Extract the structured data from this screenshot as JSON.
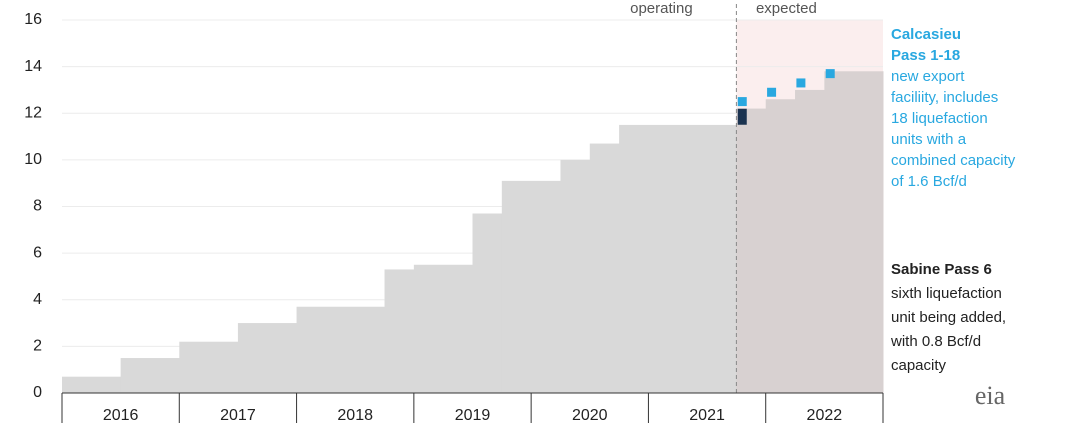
{
  "chart_data": {
    "type": "step-area",
    "ylim": [
      0,
      16
    ],
    "yticks": [
      0,
      2,
      4,
      6,
      8,
      10,
      12,
      14,
      16
    ],
    "grid": true,
    "xlim": [
      2016,
      2023
    ],
    "categories": [
      "2016",
      "2017",
      "2018",
      "2019",
      "2020",
      "2021",
      "2022"
    ],
    "steps": {
      "color": "#d9d9d9",
      "x": [
        2016,
        2016.5,
        2017,
        2017.5,
        2018,
        2018.75,
        2019,
        2019.5,
        2019.75,
        2020.25,
        2020.5,
        2020.75,
        2021.75,
        2022,
        2022.25,
        2022.5
      ],
      "values": [
        0.7,
        1.5,
        2.2,
        3.0,
        3.7,
        5.3,
        5.5,
        7.7,
        9.1,
        10.0,
        10.7,
        11.5,
        12.2,
        12.6,
        13.0,
        13.8
      ]
    },
    "series": [
      {
        "name": "Sabine Pass 6",
        "color": "#1b3350",
        "x": [
          2021.8
        ],
        "values": [
          11.85
        ]
      },
      {
        "name": "Calcasieu Pass 1-18",
        "color": "#29a8e0",
        "x": [
          2021.8,
          2022.05,
          2022.3,
          2022.55
        ],
        "values": [
          12.5,
          12.9,
          13.3,
          13.7
        ]
      }
    ],
    "divider": 2021.75,
    "region_labels": [
      "operating",
      "expected"
    ],
    "annotations": {
      "calcasieu": [
        "Calcasieu",
        "Pass 1-18",
        "new export",
        "faciliity, includes",
        "18 liquefaction",
        "units with a",
        "combined capacity",
        "of 1.6 Bcf/d"
      ],
      "sabine": [
        "Sabine Pass 6",
        "sixth liquefaction",
        "unit being added,",
        "with 0.8 Bcf/d",
        "capacity"
      ]
    },
    "logo": "eia"
  }
}
